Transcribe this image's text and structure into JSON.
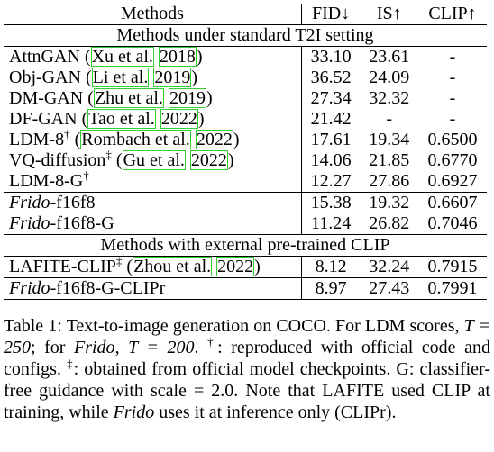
{
  "header": {
    "methods": "Methods",
    "fid": "FID↓",
    "is": "IS↑",
    "clip": "CLIP↑"
  },
  "section1": "Methods under standard T2I setting",
  "section2": "Methods with external pre-trained CLIP",
  "rows": [
    {
      "name": "AttnGAN",
      "cite_a": "Xu et al.",
      "cite_b": "2018",
      "fid": "33.10",
      "is": "23.61",
      "clip": "-"
    },
    {
      "name": "Obj-GAN",
      "cite_a": "Li et al.",
      "cite_b": "2019",
      "fid": "36.52",
      "is": "24.09",
      "clip": "-"
    },
    {
      "name": "DM-GAN",
      "cite_a": "Zhu et al.",
      "cite_b": "2019",
      "fid": "27.34",
      "is": "32.32",
      "clip": "-"
    },
    {
      "name": "DF-GAN",
      "cite_a": "Tao et al.",
      "cite_b": "2022",
      "fid": "21.42",
      "is": "-",
      "clip": "-"
    },
    {
      "name": "LDM-8",
      "sup": "†",
      "cite_a": "Rombach et al.",
      "cite_b": "2022",
      "fid": "17.61",
      "is": "19.34",
      "clip": "0.6500"
    },
    {
      "name": "VQ-diffusion",
      "sup": "‡",
      "cite_a": "Gu et al.",
      "cite_b": "2022",
      "fid": "14.06",
      "is": "21.85",
      "clip": "0.6770"
    },
    {
      "name": "LDM-8-G",
      "sup": "†",
      "fid": "12.27",
      "is": "27.86",
      "clip": "0.6927"
    },
    {
      "name_it": "Frido",
      "name_rest": "-f16f8",
      "fid": "15.38",
      "is": "19.32",
      "clip": "0.6607"
    },
    {
      "name_it": "Frido",
      "name_rest": "-f16f8-G",
      "fid": "11.24",
      "is": "26.82",
      "clip": "0.7046"
    },
    {
      "name": "LAFITE-CLIP",
      "sup": "‡",
      "cite_a": "Zhou et al.",
      "cite_b": "2022",
      "fid": "8.12",
      "is": "32.24",
      "clip": "0.7915"
    },
    {
      "name_it": "Frido",
      "name_rest": "-f16f8-G-CLIPr",
      "fid": "8.97",
      "is": "27.43",
      "clip": "0.7991"
    }
  ],
  "caption": {
    "p1": "Table 1: Text-to-image generation on COCO. For LDM scores, ",
    "t1": "T = 250",
    "p2": "; for ",
    "frido1": "Frido",
    "p3": ", ",
    "t2": "T = 200",
    "p4": ". ",
    "dagger": "†",
    "p5": ": reproduced with official code and configs. ",
    "ddagger": "‡",
    "p6": ": obtained from official model checkpoints. G: classifier-free guidance with scale = 2.0. Note that LAFITE used CLIP at training, while ",
    "frido2": "Frido",
    "p7": " uses it at inference only (CLIPr)."
  }
}
